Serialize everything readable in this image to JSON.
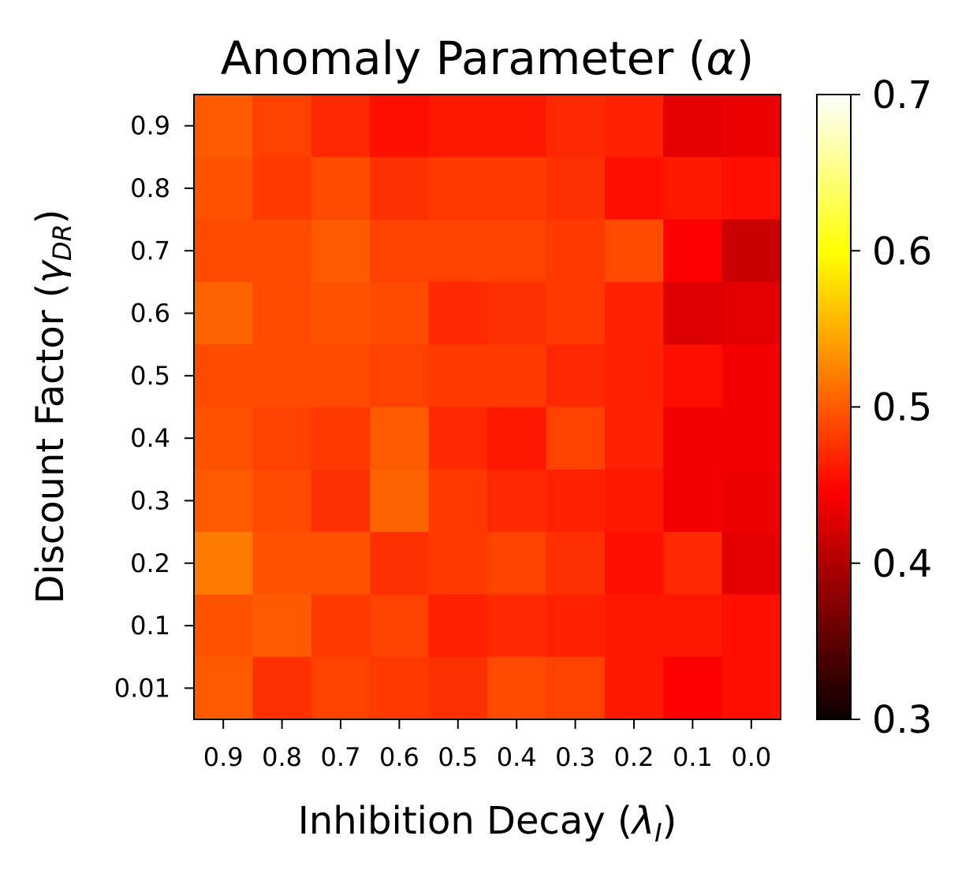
{
  "chart_data": {
    "type": "heatmap",
    "title_text": "Anomaly Parameter (",
    "title_symbol": "α",
    "title_close": ")",
    "xlabel_text": "Inhibition Decay (",
    "xlabel_symbol": "λ",
    "xlabel_sub": "I",
    "xlabel_close": ")",
    "ylabel_text": "Discount Factor (",
    "ylabel_symbol": "γ",
    "ylabel_sub": "DR",
    "ylabel_close": ")",
    "x_categories": [
      "0.9",
      "0.8",
      "0.7",
      "0.6",
      "0.5",
      "0.4",
      "0.3",
      "0.2",
      "0.1",
      "0.0"
    ],
    "y_categories": [
      "0.9",
      "0.8",
      "0.7",
      "0.6",
      "0.5",
      "0.4",
      "0.3",
      "0.2",
      "0.1",
      "0.01"
    ],
    "values": [
      [
        0.5,
        0.485,
        0.47,
        0.455,
        0.46,
        0.46,
        0.47,
        0.465,
        0.43,
        0.435
      ],
      [
        0.495,
        0.48,
        0.49,
        0.475,
        0.48,
        0.48,
        0.475,
        0.455,
        0.46,
        0.455
      ],
      [
        0.49,
        0.49,
        0.5,
        0.485,
        0.485,
        0.485,
        0.48,
        0.49,
        0.445,
        0.415
      ],
      [
        0.505,
        0.49,
        0.495,
        0.49,
        0.47,
        0.475,
        0.48,
        0.465,
        0.425,
        0.43
      ],
      [
        0.49,
        0.49,
        0.49,
        0.485,
        0.48,
        0.48,
        0.47,
        0.465,
        0.455,
        0.44
      ],
      [
        0.495,
        0.485,
        0.48,
        0.5,
        0.47,
        0.46,
        0.485,
        0.465,
        0.44,
        0.44
      ],
      [
        0.5,
        0.49,
        0.475,
        0.505,
        0.48,
        0.47,
        0.465,
        0.46,
        0.44,
        0.435
      ],
      [
        0.52,
        0.495,
        0.495,
        0.475,
        0.48,
        0.485,
        0.475,
        0.455,
        0.47,
        0.43
      ],
      [
        0.495,
        0.5,
        0.48,
        0.485,
        0.465,
        0.47,
        0.465,
        0.46,
        0.46,
        0.455
      ],
      [
        0.5,
        0.475,
        0.485,
        0.48,
        0.475,
        0.49,
        0.485,
        0.46,
        0.445,
        0.455
      ]
    ],
    "colormap": "hot",
    "vmin": 0.3,
    "vmax": 0.7,
    "colorbar_ticks": [
      "0.3",
      "0.4",
      "0.5",
      "0.6",
      "0.7"
    ]
  }
}
